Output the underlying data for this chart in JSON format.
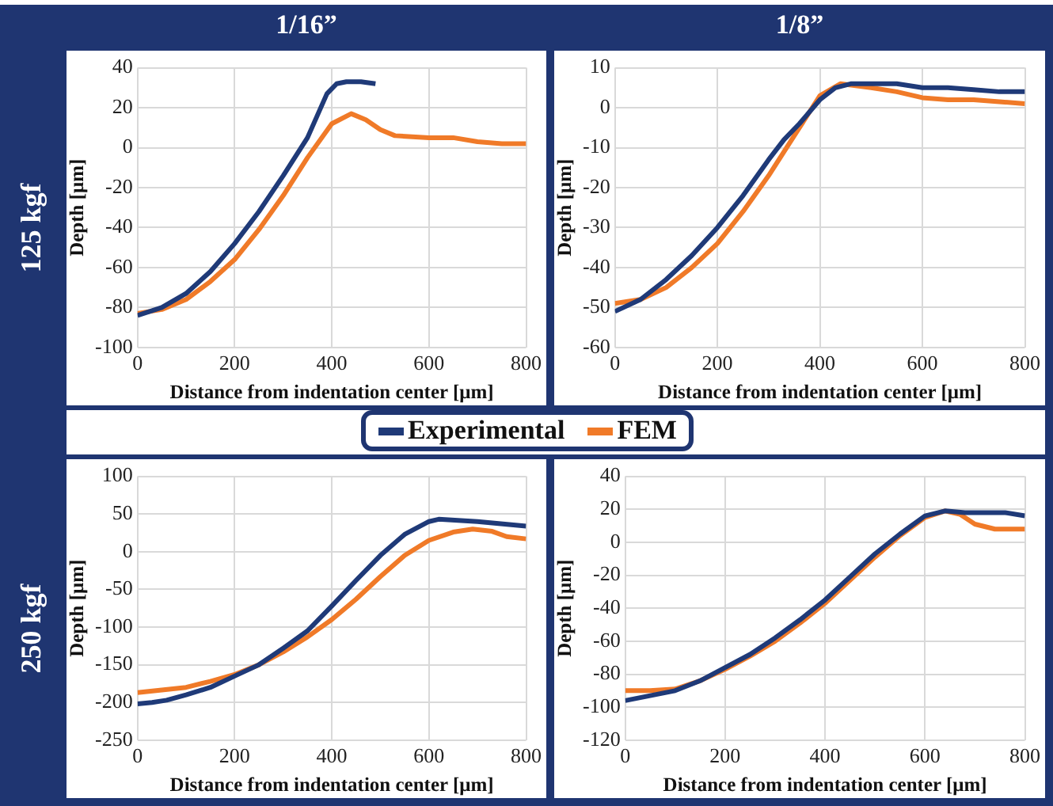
{
  "chart_data": [
    {
      "type": "line",
      "title": "1/16”",
      "annotations": [
        "125 kgf"
      ],
      "xlabel": "Distance from indentation center [μm]",
      "ylabel": "Depth [μm]",
      "xlim": [
        0,
        800
      ],
      "xticks": [
        0,
        200,
        400,
        600,
        800
      ],
      "ylim": [
        -100,
        40
      ],
      "yticks": [
        -100,
        -80,
        -60,
        -40,
        -20,
        0,
        20,
        40
      ],
      "grid": true,
      "marker": "none",
      "legend": false,
      "series": [
        {
          "color": "#1f3a78",
          "x": [
            0,
            50,
            100,
            150,
            200,
            250,
            300,
            350,
            390,
            410,
            430,
            460,
            490
          ],
          "values": [
            -84,
            -80,
            -73,
            -62,
            -48,
            -32,
            -14,
            5,
            27,
            32,
            33,
            33,
            32
          ]
        },
        {
          "color": "#f07a28",
          "x": [
            0,
            50,
            100,
            150,
            200,
            250,
            300,
            350,
            400,
            440,
            470,
            500,
            530,
            600,
            650,
            700,
            750,
            800
          ],
          "values": [
            -83,
            -81,
            -76,
            -67,
            -56,
            -41,
            -24,
            -5,
            12,
            17,
            14,
            9,
            6,
            5,
            5,
            3,
            2,
            2
          ]
        }
      ]
    },
    {
      "type": "line",
      "title": "1/8”",
      "xlabel": "Distance from indentation center [μm]",
      "ylabel": "Depth [μm]",
      "xlim": [
        0,
        800
      ],
      "xticks": [
        0,
        200,
        400,
        600,
        800
      ],
      "ylim": [
        -60,
        10
      ],
      "yticks": [
        -60,
        -50,
        -40,
        -30,
        -20,
        -10,
        0,
        10
      ],
      "grid": true,
      "marker": "none",
      "legend": false,
      "series": [
        {
          "color": "#1f3a78",
          "x": [
            0,
            50,
            100,
            150,
            200,
            250,
            300,
            330,
            360,
            400,
            430,
            460,
            500,
            550,
            600,
            650,
            700,
            750,
            800
          ],
          "values": [
            -51,
            -48,
            -43,
            -37,
            -30,
            -22,
            -13,
            -8,
            -4,
            2,
            5,
            6,
            6,
            6,
            5,
            5,
            4.5,
            4,
            4
          ]
        },
        {
          "color": "#f07a28",
          "x": [
            0,
            50,
            100,
            150,
            200,
            250,
            300,
            350,
            400,
            440,
            500,
            550,
            600,
            650,
            700,
            750,
            800
          ],
          "values": [
            -49,
            -48,
            -45,
            -40,
            -34,
            -26,
            -17,
            -7,
            3,
            6,
            5,
            4,
            2.5,
            2,
            2,
            1.5,
            1
          ]
        }
      ]
    },
    {
      "type": "line",
      "annotations": [
        "250 kgf"
      ],
      "xlabel": "Distance from indentation center [μm]",
      "ylabel": "Depth [μm]",
      "xlim": [
        0,
        800
      ],
      "xticks": [
        0,
        200,
        400,
        600,
        800
      ],
      "ylim": [
        -250,
        100
      ],
      "yticks": [
        -250,
        -200,
        -150,
        -100,
        -50,
        0,
        50,
        100
      ],
      "grid": true,
      "marker": "none",
      "legend": "top",
      "series": [
        {
          "name": "Experimental",
          "color": "#1f3a78",
          "x": [
            0,
            30,
            60,
            100,
            150,
            200,
            250,
            300,
            350,
            400,
            450,
            500,
            550,
            600,
            620,
            700,
            800
          ],
          "values": [
            -202,
            -200,
            -197,
            -190,
            -180,
            -165,
            -150,
            -128,
            -105,
            -72,
            -38,
            -5,
            23,
            40,
            43,
            40,
            34
          ]
        },
        {
          "name": "FEM",
          "color": "#f07a28",
          "x": [
            0,
            100,
            150,
            200,
            250,
            300,
            350,
            400,
            450,
            500,
            550,
            600,
            650,
            690,
            730,
            760,
            800
          ],
          "values": [
            -187,
            -180,
            -172,
            -163,
            -150,
            -133,
            -113,
            -90,
            -63,
            -33,
            -5,
            15,
            26,
            30,
            27,
            20,
            17
          ]
        }
      ]
    },
    {
      "type": "line",
      "xlabel": "Distance from indentation center [μm]",
      "ylabel": "Depth [μm]",
      "xlim": [
        0,
        800
      ],
      "xticks": [
        0,
        200,
        400,
        600,
        800
      ],
      "ylim": [
        -120,
        40
      ],
      "yticks": [
        -120,
        -100,
        -80,
        -60,
        -40,
        -20,
        0,
        20,
        40
      ],
      "grid": true,
      "marker": "none",
      "legend": false,
      "series": [
        {
          "color": "#1f3a78",
          "x": [
            0,
            50,
            100,
            150,
            200,
            250,
            300,
            350,
            400,
            450,
            500,
            550,
            600,
            640,
            680,
            720,
            760,
            800
          ],
          "values": [
            -96,
            -93,
            -90,
            -84,
            -76,
            -68,
            -58,
            -47,
            -35,
            -21,
            -7,
            5,
            16,
            19,
            18,
            18,
            18,
            16
          ]
        },
        {
          "color": "#f07a28",
          "x": [
            0,
            50,
            100,
            150,
            200,
            250,
            300,
            350,
            400,
            450,
            500,
            550,
            600,
            640,
            670,
            700,
            740,
            800
          ],
          "values": [
            -90,
            -90,
            -89,
            -84,
            -77,
            -69,
            -60,
            -49,
            -37,
            -23,
            -9,
            4,
            15,
            19,
            17,
            11,
            8,
            8
          ]
        }
      ]
    }
  ]
}
